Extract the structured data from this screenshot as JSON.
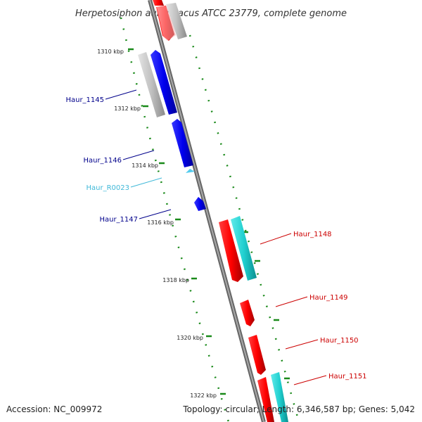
{
  "title": "Herpetosiphon aurantiacus ATCC 23779, complete genome",
  "footer": {
    "accession": "Accession: NC_009972",
    "summary": "Topology: circular; Length: 6,346,587 bp; Genes: 5,042"
  },
  "scale_labels": [
    "1310 kbp",
    "1312 kbp",
    "1314 kbp",
    "1316 kbp",
    "1318 kbp",
    "1320 kbp",
    "1322 kbp"
  ],
  "gene_labels": [
    {
      "name": "Haur_1145",
      "color": "#00008b"
    },
    {
      "name": "Haur_1146",
      "color": "#00008b"
    },
    {
      "name": "Haur_R0023",
      "color": "#3fb8d8"
    },
    {
      "name": "Haur_1147",
      "color": "#00008b"
    },
    {
      "name": "Haur_1148",
      "color": "#cc0000"
    },
    {
      "name": "Haur_1149",
      "color": "#cc0000"
    },
    {
      "name": "Haur_1150",
      "color": "#cc0000"
    },
    {
      "name": "Haur_1151",
      "color": "#cc0000"
    }
  ],
  "colors": {
    "backbone": "#888888",
    "forward_gene": "#ff0000",
    "reverse_gene": "#0000ee",
    "cds_gray": "#c0c0c0",
    "cyan_feature": "#20d0d0",
    "rna": "#55ccee",
    "tick": "#1a8a1a"
  }
}
